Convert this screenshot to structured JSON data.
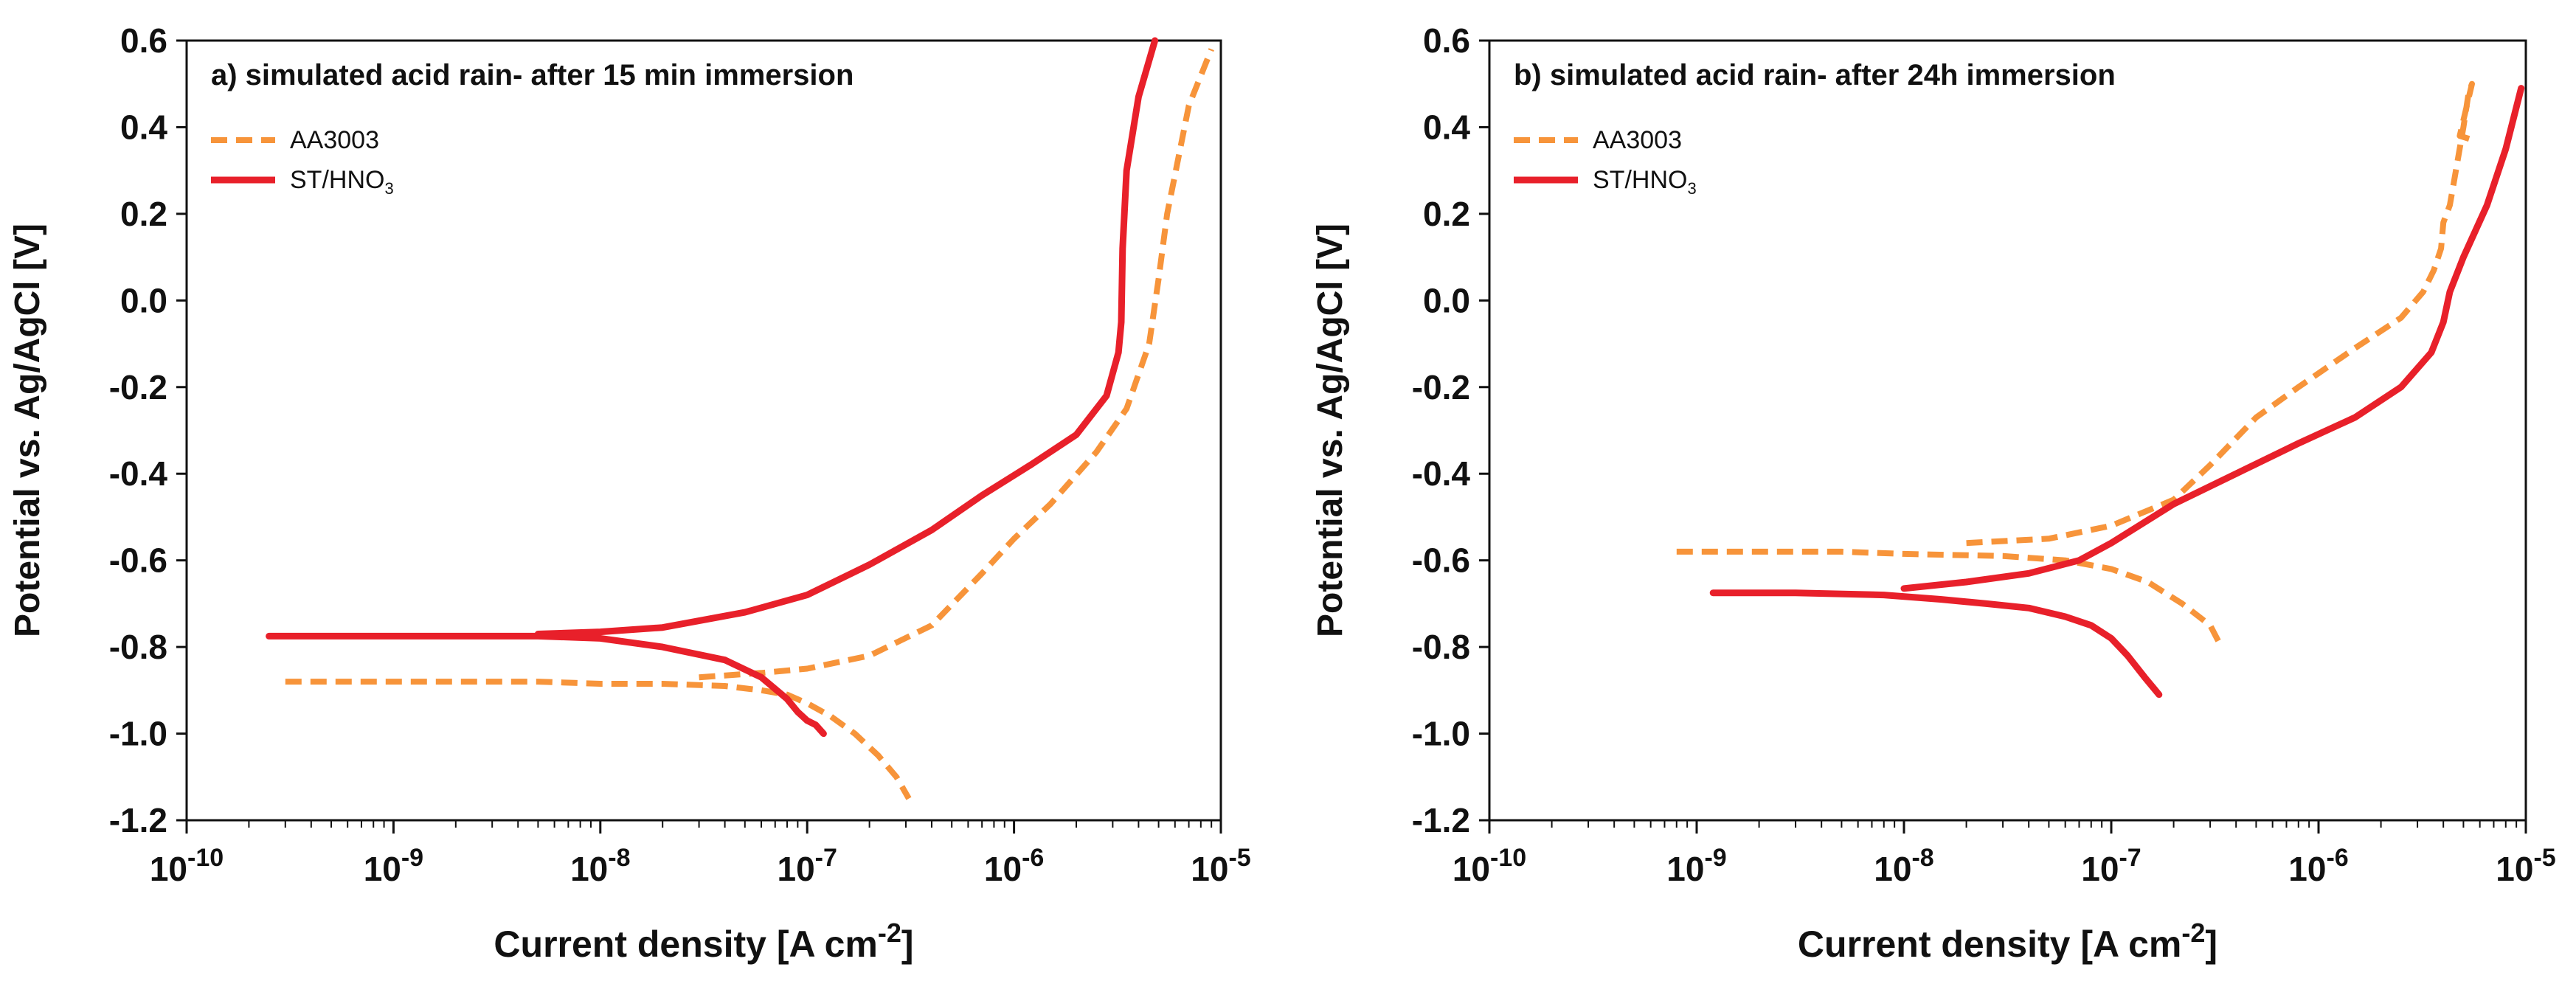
{
  "colors": {
    "aa3003": "#f7943a",
    "st_hno3": "#e8202a",
    "axis": "#111111"
  },
  "chart_data": [
    {
      "type": "line",
      "title": "a) simulated acid rain- after 15 min immersion",
      "xlabel": "Current density [A cm",
      "xlabel_sup": "-2",
      "xlabel_end": "]",
      "ylabel": "Potential vs. Ag/AgCl  [V]",
      "xscale": "log",
      "xlim": [
        1e-10,
        1e-05
      ],
      "ylim": [
        -1.2,
        0.6
      ],
      "xticks": [
        {
          "value": 1e-10,
          "base": "10",
          "exp": "-10"
        },
        {
          "value": 1e-09,
          "base": "10",
          "exp": "-9"
        },
        {
          "value": 1e-08,
          "base": "10",
          "exp": "-8"
        },
        {
          "value": 1e-07,
          "base": "10",
          "exp": "-7"
        },
        {
          "value": 1e-06,
          "base": "10",
          "exp": "-6"
        },
        {
          "value": 1e-05,
          "base": "10",
          "exp": "-5"
        }
      ],
      "yticks": [
        {
          "value": 0.6,
          "label": "0.6"
        },
        {
          "value": 0.4,
          "label": "0.4"
        },
        {
          "value": 0.2,
          "label": "0.2"
        },
        {
          "value": 0.0,
          "label": "0.0"
        },
        {
          "value": -0.2,
          "label": "-0.2"
        },
        {
          "value": -0.4,
          "label": "-0.4"
        },
        {
          "value": -0.6,
          "label": "-0.6"
        },
        {
          "value": -0.8,
          "label": "-0.8"
        },
        {
          "value": -1.0,
          "label": "-1.0"
        },
        {
          "value": -1.2,
          "label": "-1.2"
        }
      ],
      "legend": {
        "placement": "top-left"
      },
      "series": [
        {
          "name": "AA3003",
          "label_main": "AA3003",
          "label_sub": "",
          "style": "dashed",
          "color": "#f7943a",
          "branches": [
            {
              "x": [
                3e-10,
                1e-09,
                5e-09,
                1e-08,
                2e-08,
                4e-08,
                6e-08,
                8e-08,
                1e-07,
                1.3e-07,
                1.7e-07,
                2.2e-07,
                2.7e-07,
                3.1e-07
              ],
              "y": [
                -0.88,
                -0.88,
                -0.88,
                -0.885,
                -0.885,
                -0.89,
                -0.9,
                -0.91,
                -0.93,
                -0.96,
                -1.0,
                -1.05,
                -1.1,
                -1.15
              ]
            },
            {
              "x": [
                3e-08,
                6e-08,
                1e-07,
                2e-07,
                4e-07,
                7e-07,
                1e-06,
                1.5e-06,
                2.5e-06,
                3.5e-06,
                4.5e-06,
                5e-06,
                5.5e-06,
                7e-06,
                9e-06
              ],
              "y": [
                -0.87,
                -0.86,
                -0.85,
                -0.82,
                -0.75,
                -0.63,
                -0.55,
                -0.47,
                -0.35,
                -0.25,
                -0.1,
                0.05,
                0.2,
                0.45,
                0.58
              ]
            }
          ]
        },
        {
          "name": "ST/HNO3",
          "label_main": "ST/HNO",
          "label_sub": "3",
          "style": "solid",
          "color": "#e8202a",
          "branches": [
            {
              "x": [
                2.5e-10,
                1e-09,
                5e-09,
                1e-08,
                2e-08,
                4e-08,
                6e-08,
                8e-08,
                9e-08,
                1e-07,
                1.1e-07,
                1.2e-07
              ],
              "y": [
                -0.775,
                -0.775,
                -0.775,
                -0.78,
                -0.8,
                -0.83,
                -0.87,
                -0.92,
                -0.95,
                -0.97,
                -0.98,
                -1.0
              ]
            },
            {
              "x": [
                5e-09,
                1e-08,
                2e-08,
                5e-08,
                1e-07,
                2e-07,
                4e-07,
                7e-07,
                1.2e-06,
                2e-06,
                2.8e-06,
                3.2e-06,
                3.3e-06,
                3.35e-06,
                3.5e-06,
                4e-06,
                4.8e-06
              ],
              "y": [
                -0.77,
                -0.765,
                -0.755,
                -0.72,
                -0.68,
                -0.61,
                -0.53,
                -0.45,
                -0.38,
                -0.31,
                -0.22,
                -0.12,
                -0.05,
                0.12,
                0.3,
                0.47,
                0.6
              ]
            }
          ]
        }
      ]
    },
    {
      "type": "line",
      "title": "b) simulated acid rain- after 24h immersion",
      "xlabel": "Current density [A cm",
      "xlabel_sup": "-2",
      "xlabel_end": "]",
      "ylabel": "Potential vs. Ag/AgCl  [V]",
      "xscale": "log",
      "xlim": [
        1e-10,
        1e-05
      ],
      "ylim": [
        -1.2,
        0.6
      ],
      "xticks": [
        {
          "value": 1e-10,
          "base": "10",
          "exp": "-10"
        },
        {
          "value": 1e-09,
          "base": "10",
          "exp": "-9"
        },
        {
          "value": 1e-08,
          "base": "10",
          "exp": "-8"
        },
        {
          "value": 1e-07,
          "base": "10",
          "exp": "-7"
        },
        {
          "value": 1e-06,
          "base": "10",
          "exp": "-6"
        },
        {
          "value": 1e-05,
          "base": "10",
          "exp": "-5"
        }
      ],
      "yticks": [
        {
          "value": 0.6,
          "label": "0.6"
        },
        {
          "value": 0.4,
          "label": "0.4"
        },
        {
          "value": 0.2,
          "label": "0.2"
        },
        {
          "value": 0.0,
          "label": "0.0"
        },
        {
          "value": -0.2,
          "label": "-0.2"
        },
        {
          "value": -0.4,
          "label": "-0.4"
        },
        {
          "value": -0.6,
          "label": "-0.6"
        },
        {
          "value": -0.8,
          "label": "-0.8"
        },
        {
          "value": -1.0,
          "label": "-1.0"
        },
        {
          "value": -1.2,
          "label": "-1.2"
        }
      ],
      "legend": {
        "placement": "top-left"
      },
      "series": [
        {
          "name": "AA3003",
          "label_main": "AA3003",
          "label_sub": "",
          "style": "dashed",
          "color": "#f7943a",
          "branches": [
            {
              "x": [
                8e-10,
                2e-09,
                5e-09,
                1e-08,
                3e-08,
                6e-08,
                1e-07,
                1.5e-07,
                2.2e-07,
                3e-07,
                3.4e-07
              ],
              "y": [
                -0.58,
                -0.58,
                -0.58,
                -0.585,
                -0.59,
                -0.6,
                -0.62,
                -0.65,
                -0.7,
                -0.75,
                -0.8
              ]
            },
            {
              "x": [
                2e-08,
                5e-08,
                1e-07,
                2e-07,
                3e-07,
                5e-07,
                8e-07,
                1.5e-06,
                2.5e-06,
                3.2e-06,
                3.6e-06,
                3.9e-06,
                4e-06,
                4.3e-06,
                4.6e-06,
                5e-06,
                5.3e-06,
                5.5e-06,
                4.8e-06,
                5.6e-06
              ],
              "y": [
                -0.56,
                -0.55,
                -0.52,
                -0.46,
                -0.38,
                -0.27,
                -0.2,
                -0.11,
                -0.04,
                0.02,
                0.07,
                0.12,
                0.18,
                0.22,
                0.3,
                0.4,
                0.48,
                0.5,
                0.38,
                0.37
              ]
            }
          ]
        },
        {
          "name": "ST/HNO3",
          "label_main": "ST/HNO",
          "label_sub": "3",
          "style": "solid",
          "color": "#e8202a",
          "branches": [
            {
              "x": [
                1.2e-09,
                3e-09,
                8e-09,
                1.5e-08,
                2.5e-08,
                4e-08,
                6e-08,
                8e-08,
                1e-07,
                1.2e-07,
                1.45e-07,
                1.7e-07
              ],
              "y": [
                -0.675,
                -0.675,
                -0.68,
                -0.69,
                -0.7,
                -0.71,
                -0.73,
                -0.75,
                -0.78,
                -0.82,
                -0.87,
                -0.91
              ]
            },
            {
              "x": [
                1e-08,
                2e-08,
                4e-08,
                7e-08,
                1e-07,
                2e-07,
                4e-07,
                8e-07,
                1.5e-06,
                2.5e-06,
                3.5e-06,
                4e-06,
                4.3e-06,
                5e-06,
                6.5e-06,
                8e-06,
                9.5e-06
              ],
              "y": [
                -0.665,
                -0.65,
                -0.63,
                -0.6,
                -0.56,
                -0.47,
                -0.4,
                -0.33,
                -0.27,
                -0.2,
                -0.12,
                -0.05,
                0.02,
                0.1,
                0.22,
                0.35,
                0.49
              ]
            }
          ]
        }
      ]
    }
  ]
}
